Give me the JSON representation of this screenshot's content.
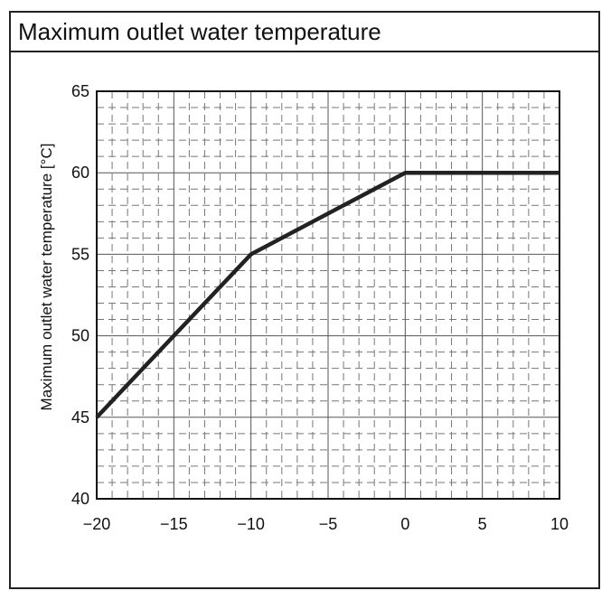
{
  "page": {
    "title": "Maximum outlet water temperature"
  },
  "chart_data": {
    "type": "line",
    "title": "Maximum outlet water temperature",
    "xlabel": "",
    "ylabel": "Maximum outlet water temperature [°C]",
    "xlim": [
      -20,
      10
    ],
    "ylim": [
      40,
      65
    ],
    "x_ticks": [
      -20,
      -15,
      -10,
      -5,
      0,
      5,
      10
    ],
    "x_tick_labels": [
      "−20",
      "−15",
      "−10",
      "−5",
      "0",
      "5",
      "10"
    ],
    "y_ticks": [
      40,
      45,
      50,
      55,
      60,
      65
    ],
    "grid": {
      "major": true,
      "minor": true,
      "minor_x_step": 1,
      "minor_y_step": 1
    },
    "series": [
      {
        "x": [
          -20,
          -10,
          0,
          10
        ],
        "values": [
          45,
          55,
          60,
          60
        ]
      }
    ],
    "colors": {
      "line": "#222222",
      "major_grid": "#555555",
      "minor_grid": "#777777"
    }
  }
}
